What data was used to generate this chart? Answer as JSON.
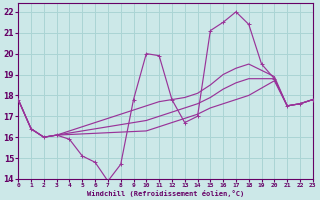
{
  "xlabel": "Windchill (Refroidissement éolien,°C)",
  "xlim": [
    0,
    23
  ],
  "ylim": [
    14,
    22.4
  ],
  "yticks": [
    14,
    15,
    16,
    17,
    18,
    19,
    20,
    21,
    22
  ],
  "xticks": [
    0,
    1,
    2,
    3,
    4,
    5,
    6,
    7,
    8,
    9,
    10,
    11,
    12,
    13,
    14,
    15,
    16,
    17,
    18,
    19,
    20,
    21,
    22,
    23
  ],
  "background_color": "#cce8e8",
  "grid_color": "#aad4d4",
  "line_color": "#993399",
  "lines": [
    {
      "x": [
        0,
        1,
        2,
        3,
        4,
        5,
        6,
        7,
        8,
        9,
        10,
        11,
        12,
        13,
        14,
        15,
        16,
        17,
        18,
        19,
        20,
        21,
        22,
        23
      ],
      "y": [
        17.8,
        16.4,
        16.0,
        16.1,
        15.9,
        15.1,
        14.8,
        13.9,
        14.7,
        17.8,
        20.0,
        19.9,
        17.8,
        16.7,
        17.0,
        21.1,
        21.5,
        22.0,
        21.4,
        19.5,
        18.8,
        17.5,
        17.6,
        17.8
      ],
      "marker": true
    },
    {
      "x": [
        0,
        1,
        2,
        3,
        10,
        11,
        12,
        13,
        14,
        15,
        16,
        17,
        18,
        20,
        21,
        22,
        23
      ],
      "y": [
        17.8,
        16.4,
        16.0,
        16.1,
        17.5,
        17.7,
        17.8,
        17.9,
        18.1,
        18.5,
        19.0,
        19.3,
        19.5,
        18.9,
        17.5,
        17.6,
        17.8
      ],
      "marker": false
    },
    {
      "x": [
        0,
        1,
        2,
        3,
        10,
        11,
        12,
        13,
        14,
        15,
        16,
        17,
        18,
        20,
        21,
        22,
        23
      ],
      "y": [
        17.8,
        16.4,
        16.0,
        16.1,
        16.8,
        17.0,
        17.2,
        17.4,
        17.6,
        17.9,
        18.3,
        18.6,
        18.8,
        18.8,
        17.5,
        17.6,
        17.8
      ],
      "marker": false
    },
    {
      "x": [
        0,
        1,
        2,
        3,
        10,
        11,
        12,
        13,
        14,
        15,
        16,
        17,
        18,
        20,
        21,
        22,
        23
      ],
      "y": [
        17.8,
        16.4,
        16.0,
        16.1,
        16.3,
        16.5,
        16.7,
        16.9,
        17.1,
        17.4,
        17.6,
        17.8,
        18.0,
        18.7,
        17.5,
        17.6,
        17.8
      ],
      "marker": false
    }
  ]
}
